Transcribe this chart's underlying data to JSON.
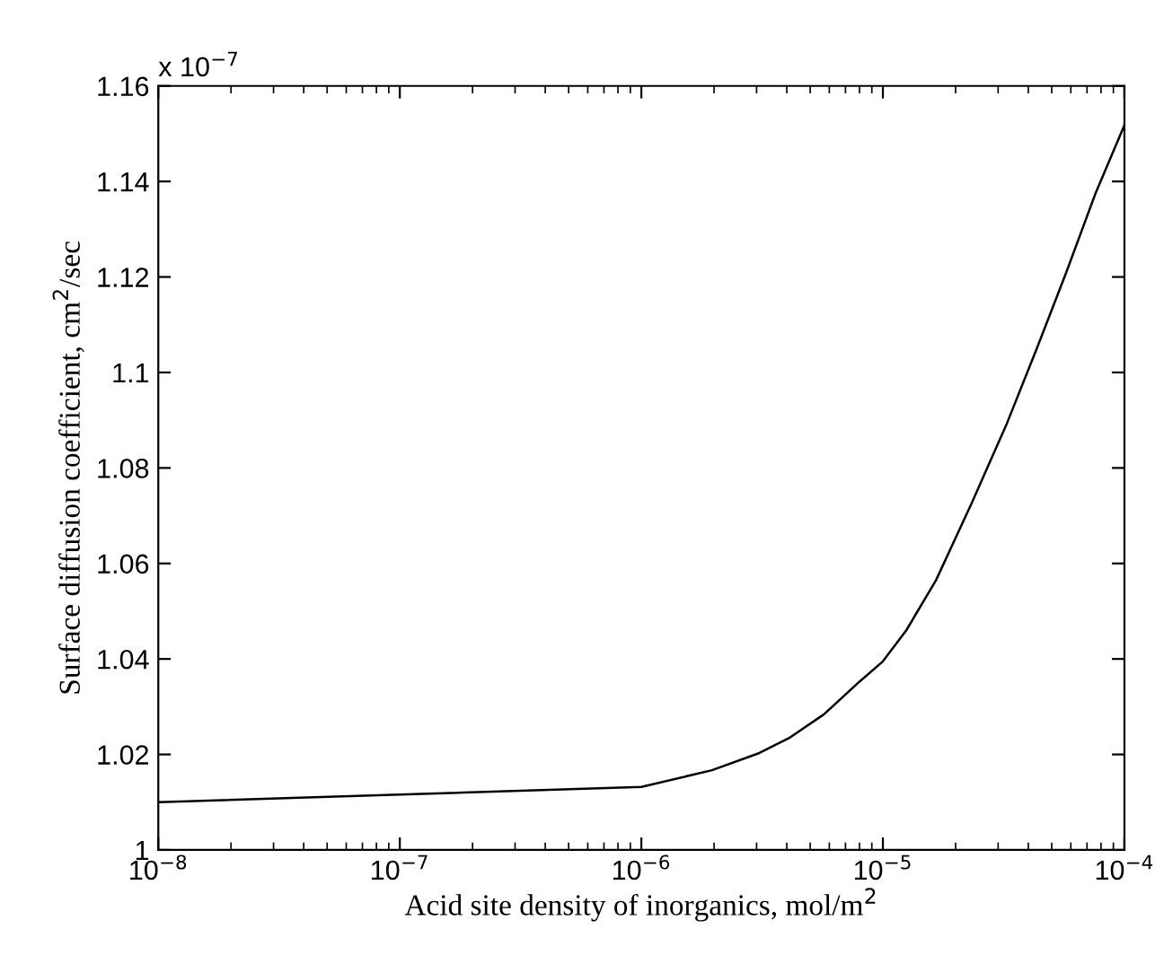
{
  "chart_data": {
    "type": "line",
    "xlabel": "Acid site density of inorganics, mol/m$^{2}$",
    "ylabel": "Surface diffusion coefficient, cm$^{2}$/sec",
    "annotations": [
      "x 10$^{−7}$"
    ],
    "log": "x",
    "grid": false,
    "marker": "none",
    "line_style": "solid",
    "series": [
      {
        "color": "#000000",
        "x": [
          1e-08,
          1e-07,
          1e-06,
          1.96e-06,
          3.08e-06,
          4.08e-06,
          5.7e-06,
          7.98e-06,
          1e-05,
          1.25e-05,
          1.66e-05,
          2.33e-05,
          3.26e-05,
          4.32e-05,
          5.73e-05,
          7.59e-05,
          0.0001
        ],
        "values": [
          1.01,
          1.0116,
          1.0132,
          1.0167,
          1.0203,
          1.0234,
          1.0284,
          1.0352,
          1.0395,
          1.046,
          1.0565,
          1.0726,
          1.0893,
          1.1048,
          1.1208,
          1.1375,
          1.1518
        ]
      }
    ],
    "xlim": [
      1e-08,
      0.0001
    ],
    "xticks": [
      {
        "value": 1e-08,
        "label": "10$^{−8}$"
      },
      {
        "value": 1e-07,
        "label": "10$^{−7}$"
      },
      {
        "value": 1e-06,
        "label": "10$^{−6}$"
      },
      {
        "value": 1e-05,
        "label": "10$^{−5}$"
      },
      {
        "value": 0.0001,
        "label": "10$^{−4}$"
      }
    ],
    "ylim": [
      1,
      1.16
    ],
    "yticks": [
      1,
      1.02,
      1.04,
      1.06,
      1.08,
      1.1,
      1.12,
      1.14,
      1.16
    ]
  }
}
